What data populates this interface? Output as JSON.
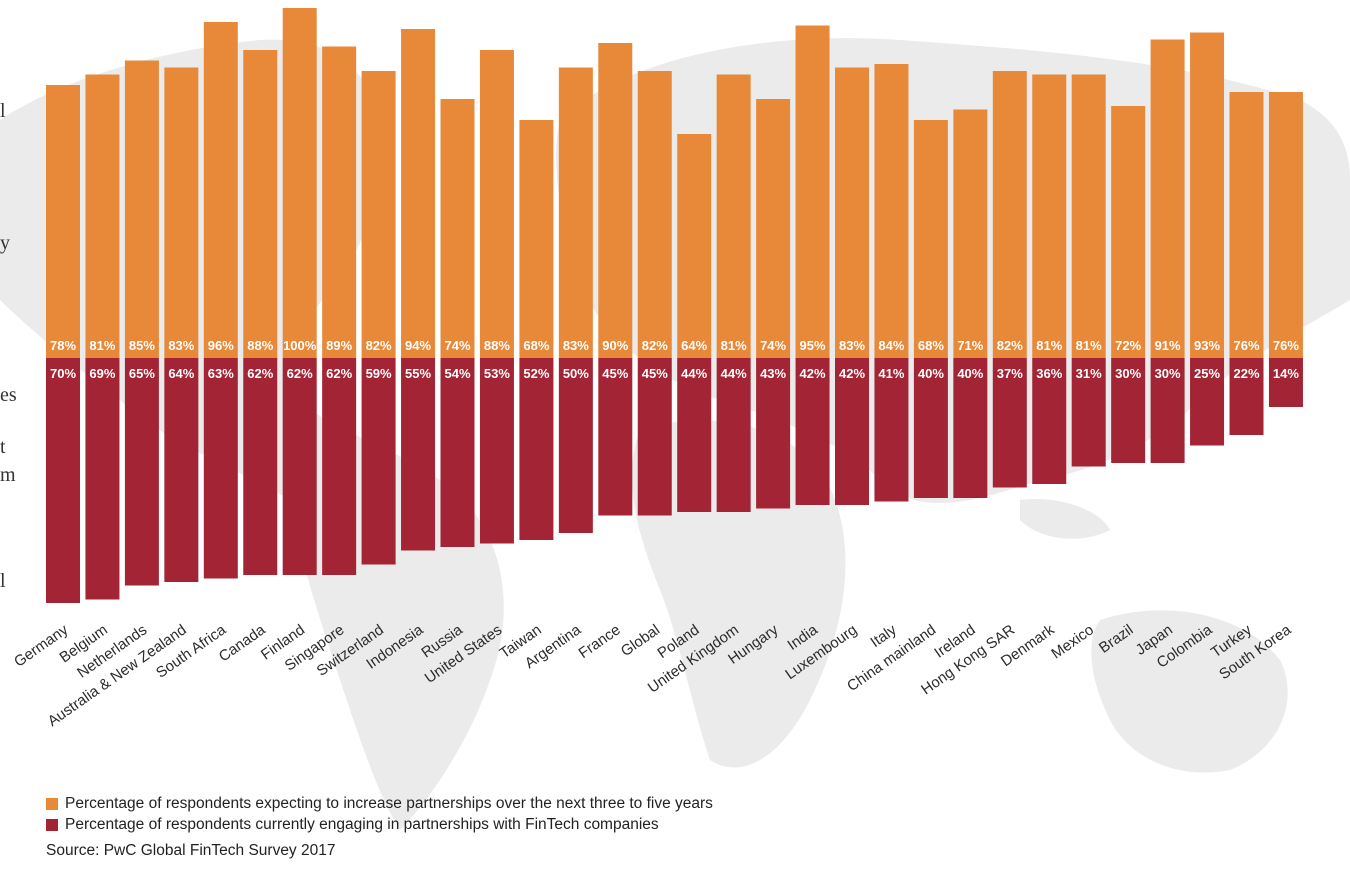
{
  "colors": {
    "expected": "#E8893A",
    "current": "#A32434",
    "map": "#ebebeb"
  },
  "left_margin_text": [
    "l",
    "y",
    "es",
    "t",
    "m",
    "l"
  ],
  "chart_data": {
    "type": "bar",
    "categories": [
      "Germany",
      "Belgium",
      "Netherlands",
      "Australia & New Zealand",
      "South Africa",
      "Canada",
      "Finland",
      "Singapore",
      "Switzerland",
      "Indonesia",
      "Russia",
      "United States",
      "Taiwan",
      "Argentina",
      "France",
      "Global",
      "Poland",
      "United Kingdom",
      "Hungary",
      "India",
      "Luxembourg",
      "Italy",
      "China mainland",
      "Ireland",
      "Hong Kong SAR",
      "Denmark",
      "Mexico",
      "Brazil",
      "Japan",
      "Colombia",
      "Turkey",
      "South Korea"
    ],
    "series": [
      {
        "name": "Percentage of respondents expecting to increase partnerships over the next three to five years",
        "values": [
          78,
          81,
          85,
          83,
          96,
          88,
          100,
          89,
          82,
          94,
          74,
          88,
          68,
          83,
          90,
          82,
          64,
          81,
          74,
          95,
          83,
          84,
          68,
          71,
          82,
          81,
          81,
          72,
          91,
          93,
          76,
          76
        ]
      },
      {
        "name": "Percentage of respondents currently engaging in partnerships with FinTech companies",
        "values": [
          70,
          69,
          65,
          64,
          63,
          62,
          62,
          62,
          59,
          55,
          54,
          53,
          52,
          50,
          45,
          45,
          44,
          44,
          43,
          42,
          42,
          41,
          40,
          40,
          37,
          36,
          31,
          30,
          30,
          25,
          22,
          14
        ]
      }
    ],
    "legend_position": "bottom-left",
    "grid": false
  },
  "legend": {
    "expected_label": "Percentage of respondents expecting to increase partnerships over the next three to five years",
    "current_label": "Percentage of respondents currently engaging in partnerships with FinTech companies"
  },
  "source": "Source: PwC Global FinTech Survey 2017"
}
